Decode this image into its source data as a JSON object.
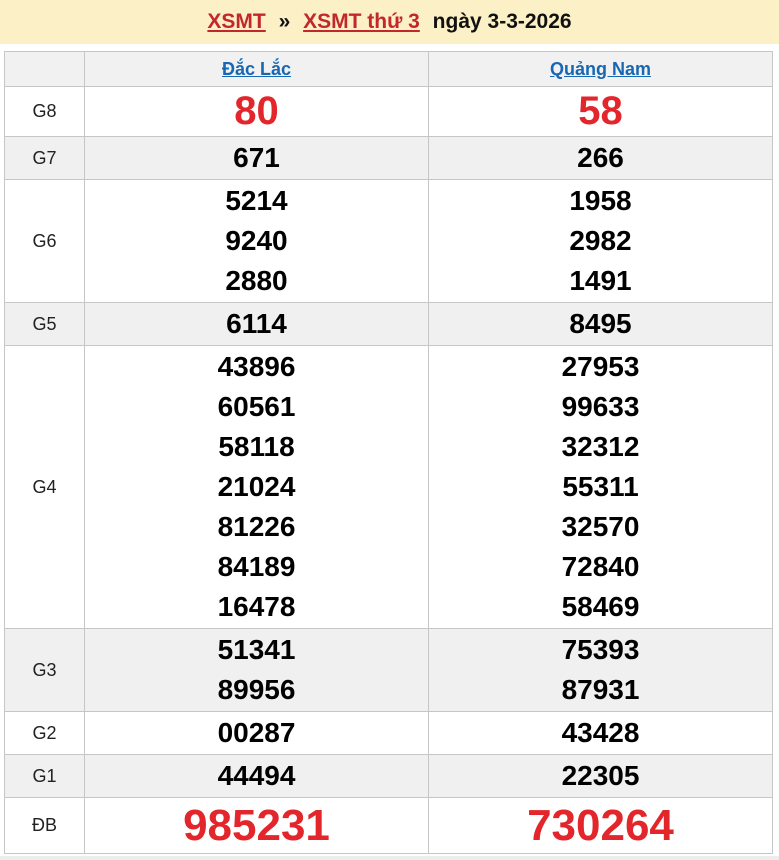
{
  "header": {
    "link1": "XSMT",
    "separator": "»",
    "link2": "XSMT thứ 3",
    "date_text": "ngày 3-3-2026"
  },
  "table": {
    "columns": [
      "Đắc Lắc",
      "Quảng Nam"
    ],
    "rows": [
      {
        "label": "G8",
        "emphasis": "red-large",
        "cells": [
          [
            "80"
          ],
          [
            "58"
          ]
        ]
      },
      {
        "label": "G7",
        "emphasis": "",
        "cells": [
          [
            "671"
          ],
          [
            "266"
          ]
        ]
      },
      {
        "label": "G6",
        "emphasis": "",
        "cells": [
          [
            "5214",
            "9240",
            "2880"
          ],
          [
            "1958",
            "2982",
            "1491"
          ]
        ]
      },
      {
        "label": "G5",
        "emphasis": "",
        "cells": [
          [
            "6114"
          ],
          [
            "8495"
          ]
        ]
      },
      {
        "label": "G4",
        "emphasis": "",
        "cells": [
          [
            "43896",
            "60561",
            "58118",
            "21024",
            "81226",
            "84189",
            "16478"
          ],
          [
            "27953",
            "99633",
            "32312",
            "55311",
            "32570",
            "72840",
            "58469"
          ]
        ]
      },
      {
        "label": "G3",
        "emphasis": "",
        "cells": [
          [
            "51341",
            "89956"
          ],
          [
            "75393",
            "87931"
          ]
        ]
      },
      {
        "label": "G2",
        "emphasis": "",
        "cells": [
          [
            "00287"
          ],
          [
            "43428"
          ]
        ]
      },
      {
        "label": "G1",
        "emphasis": "",
        "cells": [
          [
            "44494"
          ],
          [
            "22305"
          ]
        ]
      },
      {
        "label": "ĐB",
        "emphasis": "red-xlarge",
        "cells": [
          [
            "985231"
          ],
          [
            "730264"
          ]
        ]
      }
    ]
  },
  "colors": {
    "banner_background": "#fbf0c6",
    "title_link_red": "#c2272d",
    "province_link_blue": "#1767b3",
    "number_red": "#e2262c",
    "number_black": "#000000",
    "stripe_gray": "#f0f0f0",
    "border_gray": "#c6c6c6"
  }
}
